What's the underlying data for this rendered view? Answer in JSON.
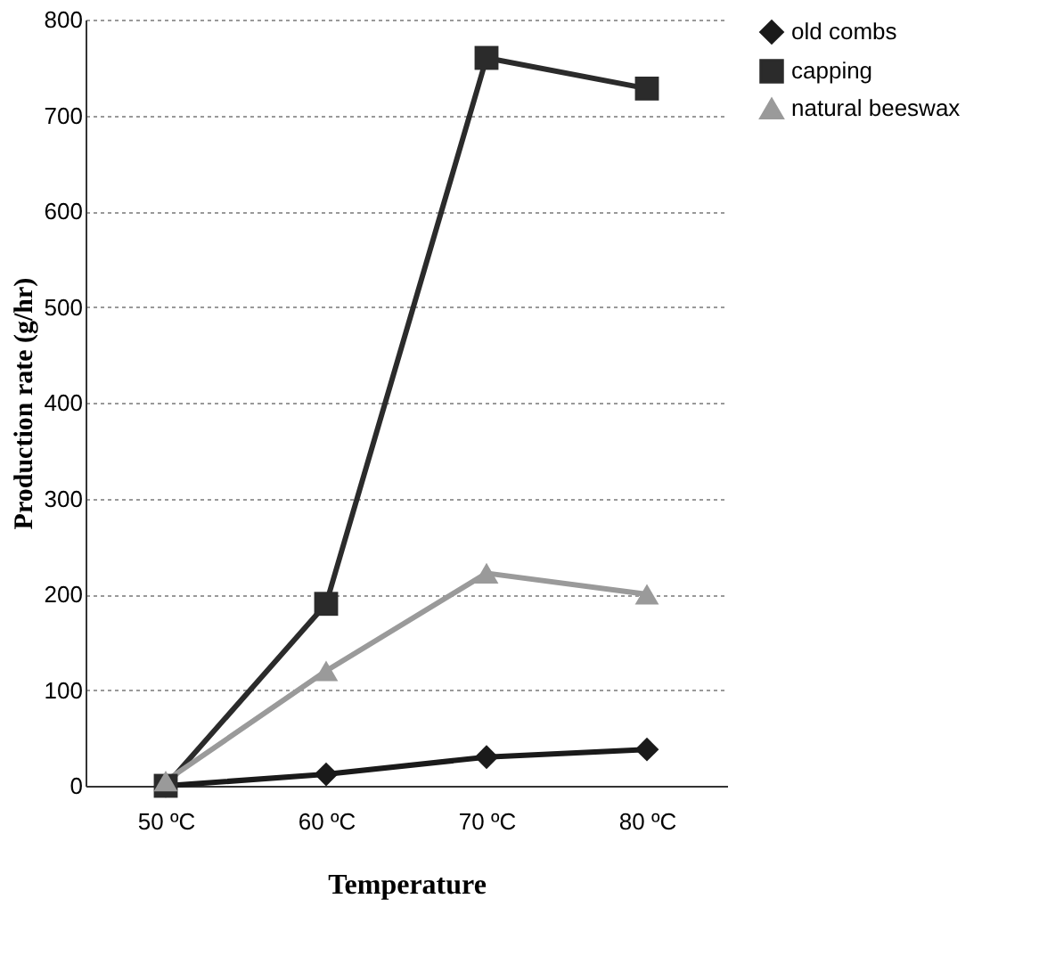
{
  "chart_data": {
    "type": "line",
    "xlabel": "Temperature",
    "ylabel": "Production rate (g/hr)",
    "categories": [
      "50 ºC",
      "60 ºC",
      "70 ºC",
      "80 ºC"
    ],
    "series": [
      {
        "name": "old combs",
        "color": "#1a1a1a",
        "marker": "diamond",
        "values": [
          0,
          12,
          30,
          38
        ]
      },
      {
        "name": "capping",
        "color": "#2b2b2b",
        "marker": "square",
        "values": [
          0,
          190,
          760,
          728
        ]
      },
      {
        "name": "natural beeswax",
        "color": "#9a9a9a",
        "marker": "triangle",
        "values": [
          5,
          120,
          222,
          200
        ]
      }
    ],
    "ylim": [
      0,
      800
    ],
    "yticks": [
      0,
      100,
      200,
      300,
      400,
      500,
      600,
      700,
      800
    ],
    "grid": "y",
    "legend": "right",
    "line_style": "solid"
  }
}
